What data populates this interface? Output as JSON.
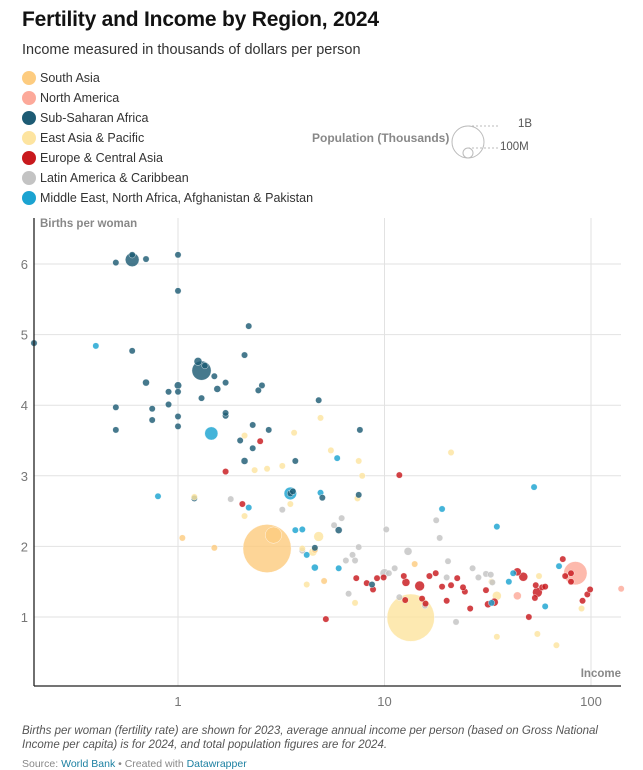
{
  "header": {
    "title": "Fertility and Income by Region, 2024",
    "subtitle": "Income measured in thousands of dollars per person"
  },
  "legend": [
    {
      "label": "South Asia",
      "color": "#fdcc80"
    },
    {
      "label": "North America",
      "color": "#fca99a"
    },
    {
      "label": "Sub-Saharan Africa",
      "color": "#1d5b74"
    },
    {
      "label": "East Asia & Pacific",
      "color": "#fde4a0"
    },
    {
      "label": "Europe & Central Asia",
      "color": "#c8191d"
    },
    {
      "label": "Latin America & Caribbean",
      "color": "#c3c3c3"
    },
    {
      "label": "Middle East, North Africa, Afghanistan & Pakistan",
      "color": "#1ba3d1"
    }
  ],
  "size_legend": {
    "title": "Population (Thousands)",
    "large_label": "1B",
    "small_label": "100M"
  },
  "notes": "Births per woman (fertility rate) are shown for 2023, average annual income per person (based on Gross National Income per capita) is for 2024, and total population figures are for 2024.",
  "source": {
    "prefix": "Source: ",
    "source_link": "World Bank",
    "separator": " • Created with ",
    "tool_link": "Datawrapper"
  },
  "chart_data": {
    "type": "scatter",
    "title": "Fertility and Income by Region, 2024",
    "xlabel": "Income",
    "ylabel": "Births per woman",
    "xscale": "log",
    "xlim": [
      0.2,
      140
    ],
    "ylim": [
      0,
      6.6
    ],
    "xticks": [
      1,
      10,
      100
    ],
    "xtick_labels": [
      "1",
      "10",
      "100"
    ],
    "yticks": [
      1,
      2,
      3,
      4,
      5,
      6
    ],
    "ytick_labels": [
      "1",
      "2",
      "3",
      "4",
      "5",
      "6"
    ],
    "grid": true,
    "legend_position": "top-left",
    "point_fields": [
      "income_k_usd",
      "births_per_woman",
      "population_millions",
      "region_index"
    ],
    "points": [
      [
        0.2,
        4.88,
        15,
        2
      ],
      [
        0.5,
        6.02,
        10,
        2
      ],
      [
        0.6,
        6.06,
        120,
        2
      ],
      [
        0.6,
        6.13,
        20,
        2
      ],
      [
        0.7,
        6.07,
        25,
        2
      ],
      [
        1.0,
        6.13,
        18,
        2
      ],
      [
        1.0,
        5.62,
        18,
        2
      ],
      [
        0.6,
        4.77,
        20,
        2
      ],
      [
        0.7,
        4.32,
        30,
        2
      ],
      [
        0.5,
        3.97,
        22,
        2
      ],
      [
        0.5,
        3.65,
        18,
        2
      ],
      [
        0.75,
        3.95,
        10,
        2
      ],
      [
        0.75,
        3.79,
        12,
        2
      ],
      [
        0.9,
        4.01,
        10,
        2
      ],
      [
        1.0,
        4.28,
        35,
        2
      ],
      [
        1.0,
        4.19,
        12,
        2
      ],
      [
        1.0,
        3.84,
        10,
        2
      ],
      [
        1.0,
        3.7,
        14,
        2
      ],
      [
        0.9,
        4.19,
        20,
        2
      ],
      [
        1.25,
        4.62,
        40,
        2
      ],
      [
        1.3,
        4.49,
        230,
        2
      ],
      [
        1.35,
        4.56,
        12,
        2
      ],
      [
        1.5,
        4.41,
        25,
        2
      ],
      [
        1.7,
        4.32,
        25,
        2
      ],
      [
        1.3,
        4.1,
        20,
        2
      ],
      [
        1.55,
        4.23,
        30,
        2
      ],
      [
        1.7,
        3.85,
        12,
        2
      ],
      [
        1.7,
        3.89,
        10,
        2
      ],
      [
        2.1,
        4.71,
        8,
        2
      ],
      [
        2.2,
        5.12,
        25,
        2
      ],
      [
        2.55,
        4.28,
        25,
        2
      ],
      [
        2.45,
        4.21,
        12,
        2
      ],
      [
        2.3,
        3.72,
        18,
        2
      ],
      [
        2.1,
        3.21,
        30,
        2
      ],
      [
        2.3,
        3.39,
        25,
        2
      ],
      [
        2.0,
        3.5,
        12,
        2
      ],
      [
        2.75,
        3.65,
        8,
        2
      ],
      [
        3.7,
        3.21,
        8,
        2
      ],
      [
        4.8,
        4.07,
        6,
        2
      ],
      [
        7.6,
        3.65,
        8,
        2
      ],
      [
        3.5,
        2.75,
        10,
        2
      ],
      [
        7.5,
        2.73,
        6,
        2
      ],
      [
        6.0,
        2.23,
        30,
        2
      ],
      [
        1.2,
        2.68,
        8,
        2
      ],
      [
        3.6,
        2.78,
        10,
        2
      ],
      [
        5.0,
        2.69,
        8,
        2
      ],
      [
        4.6,
        1.98,
        6,
        2
      ],
      [
        8.7,
        1.46,
        6,
        2
      ],
      [
        0.4,
        4.84,
        20,
        6
      ],
      [
        1.45,
        3.6,
        110,
        6
      ],
      [
        0.8,
        2.71,
        12,
        6
      ],
      [
        2.2,
        2.55,
        10,
        6
      ],
      [
        3.5,
        2.75,
        100,
        6
      ],
      [
        3.7,
        2.23,
        14,
        6
      ],
      [
        4.0,
        2.24,
        12,
        6
      ],
      [
        4.6,
        1.7,
        30,
        6
      ],
      [
        4.9,
        2.76,
        14,
        6
      ],
      [
        4.2,
        1.88,
        12,
        6
      ],
      [
        5.9,
        3.25,
        14,
        6
      ],
      [
        6.0,
        1.69,
        8,
        6
      ],
      [
        19.0,
        2.53,
        8,
        6
      ],
      [
        35.0,
        2.28,
        14,
        6
      ],
      [
        40.0,
        1.5,
        9,
        6
      ],
      [
        42.0,
        1.62,
        10,
        6
      ],
      [
        53.0,
        2.84,
        10,
        6
      ],
      [
        33.0,
        1.2,
        9,
        6
      ],
      [
        70.0,
        1.72,
        10,
        6
      ],
      [
        60.0,
        1.15,
        10,
        6
      ],
      [
        1.05,
        2.12,
        20,
        0
      ],
      [
        1.5,
        1.98,
        14,
        0
      ],
      [
        2.7,
        1.97,
        1450,
        0
      ],
      [
        2.9,
        2.16,
        170,
        0
      ],
      [
        5.1,
        1.51,
        10,
        0
      ],
      [
        4.6,
        1.95,
        8,
        0
      ],
      [
        14.0,
        1.75,
        6,
        0
      ],
      [
        1.2,
        2.7,
        8,
        3
      ],
      [
        2.1,
        3.57,
        10,
        3
      ],
      [
        2.1,
        2.43,
        8,
        3
      ],
      [
        2.35,
        3.08,
        12,
        3
      ],
      [
        2.7,
        3.1,
        8,
        3
      ],
      [
        3.2,
        3.14,
        10,
        3
      ],
      [
        3.5,
        2.6,
        12,
        3
      ],
      [
        3.65,
        3.61,
        8,
        3
      ],
      [
        4.0,
        1.97,
        8,
        3
      ],
      [
        4.2,
        1.46,
        6,
        3
      ],
      [
        4.8,
        2.14,
        60,
        3
      ],
      [
        4.5,
        1.92,
        40,
        3
      ],
      [
        4.9,
        3.82,
        8,
        3
      ],
      [
        5.5,
        3.36,
        8,
        3
      ],
      [
        7.2,
        1.2,
        20,
        3
      ],
      [
        7.5,
        3.21,
        10,
        3
      ],
      [
        7.8,
        3.0,
        8,
        3
      ],
      [
        7.4,
        2.68,
        8,
        3
      ],
      [
        13.4,
        0.99,
        1410,
        3
      ],
      [
        21.0,
        3.33,
        8,
        3
      ],
      [
        33.0,
        1.5,
        10,
        3
      ],
      [
        35.0,
        1.3,
        50,
        3
      ],
      [
        35.0,
        0.72,
        20,
        3
      ],
      [
        55.0,
        0.76,
        8,
        3
      ],
      [
        68.0,
        0.6,
        8,
        3
      ],
      [
        90.0,
        1.12,
        8,
        3
      ],
      [
        56.0,
        1.58,
        14,
        3
      ],
      [
        1.7,
        3.06,
        12,
        4
      ],
      [
        2.5,
        3.49,
        18,
        4
      ],
      [
        2.05,
        2.6,
        10,
        4
      ],
      [
        7.3,
        1.55,
        14,
        4
      ],
      [
        8.2,
        1.48,
        10,
        4
      ],
      [
        8.8,
        1.39,
        14,
        4
      ],
      [
        11.8,
        3.01,
        14,
        4
      ],
      [
        5.2,
        0.97,
        18,
        4
      ],
      [
        12.4,
        1.58,
        10,
        4
      ],
      [
        12.7,
        1.49,
        40,
        4
      ],
      [
        12.6,
        1.24,
        20,
        4
      ],
      [
        14.8,
        1.44,
        60,
        4
      ],
      [
        15.2,
        1.26,
        20,
        4
      ],
      [
        9.9,
        1.56,
        10,
        4
      ],
      [
        16.5,
        1.58,
        10,
        4
      ],
      [
        17.7,
        1.62,
        10,
        4
      ],
      [
        15.8,
        1.19,
        14,
        4
      ],
      [
        19.0,
        1.43,
        12,
        4
      ],
      [
        20.0,
        1.23,
        10,
        4
      ],
      [
        21.0,
        1.45,
        12,
        4
      ],
      [
        22.5,
        1.55,
        10,
        4
      ],
      [
        24.5,
        1.36,
        14,
        4
      ],
      [
        24.0,
        1.42,
        12,
        4
      ],
      [
        26.0,
        1.12,
        14,
        4
      ],
      [
        31.0,
        1.38,
        12,
        4
      ],
      [
        31.7,
        1.18,
        30,
        4
      ],
      [
        34.0,
        1.21,
        40,
        4
      ],
      [
        44.0,
        1.64,
        40,
        4
      ],
      [
        47.0,
        1.57,
        50,
        4
      ],
      [
        55.0,
        1.35,
        60,
        4
      ],
      [
        54.0,
        1.45,
        14,
        4
      ],
      [
        53.5,
        1.27,
        14,
        4
      ],
      [
        58.0,
        1.42,
        14,
        4
      ],
      [
        60.0,
        1.43,
        12,
        4
      ],
      [
        50.0,
        1.0,
        10,
        4
      ],
      [
        73.0,
        1.82,
        10,
        4
      ],
      [
        75.0,
        1.58,
        10,
        4
      ],
      [
        80.0,
        1.5,
        14,
        4
      ],
      [
        80.0,
        1.62,
        10,
        4
      ],
      [
        91.0,
        1.23,
        10,
        4
      ],
      [
        96.0,
        1.32,
        10,
        4
      ],
      [
        99.0,
        1.39,
        10,
        4
      ],
      [
        9.2,
        1.55,
        10,
        4
      ],
      [
        1.8,
        2.67,
        10,
        5
      ],
      [
        3.2,
        2.52,
        8,
        5
      ],
      [
        4.0,
        1.94,
        10,
        5
      ],
      [
        5.7,
        2.3,
        12,
        5
      ],
      [
        6.2,
        2.4,
        8,
        5
      ],
      [
        7.5,
        1.99,
        18,
        5
      ],
      [
        7.0,
        1.88,
        10,
        5
      ],
      [
        7.2,
        1.8,
        10,
        5
      ],
      [
        6.5,
        1.8,
        14,
        5
      ],
      [
        10.0,
        1.62,
        50,
        5
      ],
      [
        6.7,
        1.33,
        8,
        5
      ],
      [
        10.2,
        2.24,
        8,
        5
      ],
      [
        11.8,
        1.28,
        8,
        5
      ],
      [
        13.0,
        1.93,
        40,
        5
      ],
      [
        15.7,
        1.16,
        18,
        5
      ],
      [
        17.8,
        2.37,
        8,
        5
      ],
      [
        18.5,
        2.12,
        8,
        5
      ],
      [
        20.0,
        1.56,
        8,
        5
      ],
      [
        20.3,
        1.79,
        8,
        5
      ],
      [
        22.2,
        0.93,
        8,
        5
      ],
      [
        26.7,
        1.69,
        8,
        5
      ],
      [
        28.5,
        1.56,
        8,
        5
      ],
      [
        31.0,
        1.61,
        8,
        5
      ],
      [
        32.7,
        1.6,
        8,
        5
      ],
      [
        33.3,
        1.49,
        8,
        5
      ],
      [
        10.5,
        1.62,
        10,
        5
      ],
      [
        11.2,
        1.69,
        8,
        5
      ],
      [
        84.0,
        1.62,
        340,
        1
      ],
      [
        140.0,
        1.4,
        10,
        1
      ],
      [
        44.0,
        1.3,
        40,
        1
      ]
    ]
  }
}
